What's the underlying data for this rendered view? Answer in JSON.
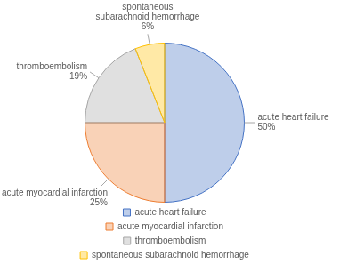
{
  "chart_data": {
    "type": "pie",
    "categories": [
      "acute heart failure",
      "acute myocardial infarction",
      "thromboembolism",
      "spontaneous subarachnoid hemorrhage"
    ],
    "values": [
      50,
      25,
      19,
      6
    ],
    "value_labels": [
      "50%",
      "25%",
      "19%",
      "6%"
    ],
    "colors": [
      "#4472c4",
      "#ed7d31",
      "#a5a5a5",
      "#ffc000"
    ],
    "data_labels": true,
    "legend": "bottom"
  }
}
